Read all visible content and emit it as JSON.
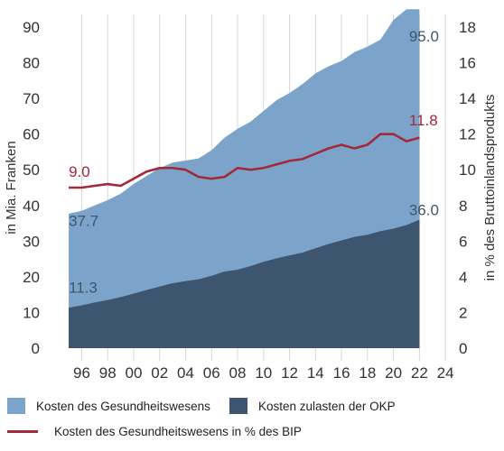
{
  "chart_data": {
    "type": "area",
    "x": [
      1995,
      1996,
      1997,
      1998,
      1999,
      2000,
      2001,
      2002,
      2003,
      2004,
      2005,
      2006,
      2007,
      2008,
      2009,
      2010,
      2011,
      2012,
      2013,
      2014,
      2015,
      2016,
      2017,
      2018,
      2019,
      2020,
      2021,
      2022
    ],
    "x_ticks": [
      1996,
      1998,
      2000,
      2002,
      2004,
      2006,
      2008,
      2010,
      2012,
      2014,
      2016,
      2018,
      2020,
      2022,
      2024
    ],
    "x_tick_labels": [
      "96",
      "98",
      "00",
      "02",
      "04",
      "06",
      "08",
      "10",
      "12",
      "14",
      "16",
      "18",
      "20",
      "22",
      "24"
    ],
    "xlim": [
      1994.3,
      2024.2
    ],
    "ylabel_left": "in Mia. Franken",
    "ylabel_right": "in % des Bruttoinlandsprodukts",
    "ylim_left": [
      0,
      90
    ],
    "ylim_right": [
      0,
      18
    ],
    "yticks_left": [
      0,
      10,
      20,
      30,
      40,
      50,
      60,
      70,
      80,
      90
    ],
    "yticks_right": [
      0,
      2,
      4,
      6,
      8,
      10,
      12,
      14,
      16,
      18
    ],
    "grid": "vertical",
    "series": [
      {
        "name": "Kosten des Gesundheitswesens",
        "kind": "area",
        "axis": "left",
        "color": "#7ca4cb",
        "values": [
          37.7,
          38.5,
          40.0,
          41.5,
          43.3,
          46.0,
          48.3,
          50.5,
          52.0,
          52.6,
          53.2,
          55.5,
          59.0,
          61.5,
          63.5,
          66.5,
          69.5,
          71.5,
          74.0,
          77.0,
          79.0,
          80.5,
          83.0,
          84.5,
          86.5,
          92.0,
          95.0,
          95.0
        ]
      },
      {
        "name": "Kosten zulasten der OKP",
        "kind": "area",
        "axis": "left",
        "color": "#3d556e",
        "values": [
          11.3,
          12.0,
          12.8,
          13.5,
          14.3,
          15.3,
          16.3,
          17.3,
          18.2,
          18.8,
          19.3,
          20.3,
          21.5,
          22.0,
          23.0,
          24.2,
          25.2,
          26.0,
          26.8,
          28.0,
          29.2,
          30.2,
          31.2,
          31.8,
          32.8,
          33.5,
          34.5,
          36.0
        ]
      },
      {
        "name": "Kosten des Gesundheitswesens in % des BIP",
        "kind": "line",
        "axis": "right",
        "color": "#a3283a",
        "values": [
          9.0,
          9.0,
          9.1,
          9.2,
          9.1,
          9.5,
          9.9,
          10.1,
          10.1,
          10.0,
          9.6,
          9.5,
          9.6,
          10.1,
          10.0,
          10.1,
          10.3,
          10.5,
          10.6,
          10.9,
          11.2,
          11.4,
          11.2,
          11.4,
          12.0,
          12.0,
          11.6,
          11.8
        ]
      }
    ],
    "annotations": [
      {
        "text": "95.0",
        "x": 2021.2,
        "y": 86,
        "axis": "left",
        "color": "#3d556e"
      },
      {
        "text": "37.7",
        "x": 1995.0,
        "y": 34.3,
        "axis": "left",
        "color": "#3d556e"
      },
      {
        "text": "36.0",
        "x": 2021.2,
        "y": 37.3,
        "axis": "left",
        "color": "#3d556e"
      },
      {
        "text": "11.3",
        "x": 1995.0,
        "y": 15.6,
        "axis": "left",
        "color": "#3d556e"
      },
      {
        "text": "9.0",
        "x": 1995.0,
        "y": 9.6,
        "axis": "right",
        "color": "#a3283a"
      },
      {
        "text": "11.8",
        "x": 2021.2,
        "y": 12.5,
        "axis": "right",
        "color": "#a3283a"
      }
    ]
  },
  "legend": {
    "items": [
      {
        "label": "Kosten des Gesundheitswesens",
        "color": "#7ca4cb",
        "kind": "swatch"
      },
      {
        "label": "Kosten zulasten der OKP",
        "color": "#3d556e",
        "kind": "swatch"
      },
      {
        "label": "Kosten des Gesundheitswesens in % des BIP",
        "color": "#a3283a",
        "kind": "line"
      }
    ]
  }
}
